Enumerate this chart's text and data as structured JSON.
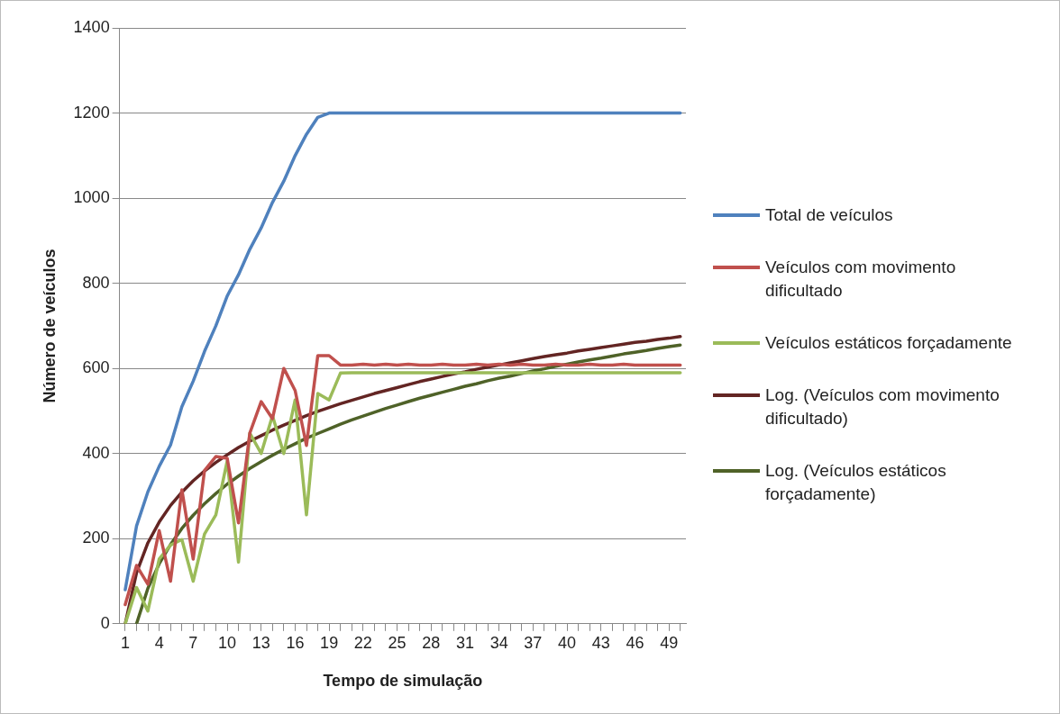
{
  "chart_data": {
    "type": "line",
    "xlabel": "Tempo de simulação",
    "ylabel": "Número de veículos",
    "categories": [
      "1",
      null,
      null,
      "4",
      null,
      null,
      "7",
      null,
      null,
      "10",
      null,
      null,
      "13",
      null,
      null,
      "16",
      null,
      null,
      "19",
      null,
      null,
      "22",
      null,
      null,
      "25",
      null,
      null,
      "28",
      null,
      null,
      "31",
      null,
      null,
      "34",
      null,
      null,
      "37",
      null,
      null,
      "40",
      null,
      null,
      "43",
      null,
      null,
      "46",
      null,
      null,
      "49",
      null
    ],
    "ylim": [
      0,
      1400
    ],
    "yticks": [
      0,
      200,
      400,
      600,
      800,
      1000,
      1200,
      1400
    ],
    "grid": "y",
    "legend": "right",
    "marker": "none",
    "series": [
      {
        "name": "Total de veículos",
        "color": "#4f81bd",
        "values": [
          80,
          230,
          310,
          370,
          420,
          510,
          570,
          640,
          700,
          770,
          820,
          880,
          930,
          990,
          1040,
          1100,
          1150,
          1190,
          1200,
          1200,
          1200,
          1200,
          1200,
          1200,
          1200,
          1200,
          1200,
          1200,
          1200,
          1200,
          1200,
          1200,
          1200,
          1200,
          1200,
          1200,
          1200,
          1200,
          1200,
          1200,
          1200,
          1200,
          1200,
          1200,
          1200,
          1200,
          1200,
          1200,
          1200,
          1200
        ]
      },
      {
        "name": "Veículos com movimento dificultado",
        "color": "#c0504d",
        "values": [
          45,
          137,
          93,
          219,
          100,
          315,
          152,
          360,
          393,
          389,
          237,
          448,
          522,
          482,
          600,
          548,
          419,
          630,
          630,
          608,
          608,
          610,
          608,
          610,
          608,
          610,
          608,
          608,
          610,
          608,
          608,
          610,
          608,
          610,
          608,
          610,
          608,
          608,
          610,
          608,
          608,
          610,
          608,
          608,
          610,
          608,
          608,
          608,
          608,
          608
        ]
      },
      {
        "name": "Veículos estáticos forçadamente",
        "color": "#9bbb59",
        "values": [
          0,
          85,
          30,
          152,
          185,
          198,
          100,
          211,
          256,
          382,
          145,
          448,
          400,
          489,
          400,
          526,
          256,
          541,
          526,
          589,
          590,
          590,
          590,
          590,
          590,
          590,
          590,
          590,
          590,
          590,
          590,
          590,
          590,
          590,
          590,
          590,
          590,
          590,
          590,
          590,
          590,
          590,
          590,
          590,
          590,
          590,
          590,
          590,
          590,
          590
        ]
      },
      {
        "name": "Log. (Veículos com movimento dificultado)",
        "color": "#632523",
        "values": [
          0,
          120,
          190,
          239,
          278,
          309,
          336,
          359,
          379,
          397,
          414,
          429,
          442,
          455,
          467,
          478,
          489,
          499,
          508,
          517,
          525,
          533,
          541,
          548,
          555,
          562,
          569,
          575,
          581,
          587,
          592,
          598,
          603,
          608,
          613,
          618,
          623,
          628,
          632,
          636,
          641,
          645,
          649,
          653,
          657,
          661,
          664,
          668,
          671,
          675
        ]
      },
      {
        "name": "Log. (Veículos estáticos forçadamente)",
        "color": "#4f6228",
        "values": [
          null,
          0,
          83,
          141,
          186,
          224,
          255,
          282,
          306,
          328,
          347,
          365,
          381,
          396,
          410,
          423,
          436,
          447,
          458,
          469,
          479,
          488,
          497,
          506,
          514,
          522,
          530,
          537,
          544,
          551,
          558,
          564,
          571,
          577,
          582,
          588,
          594,
          599,
          605,
          610,
          615,
          620,
          624,
          629,
          634,
          638,
          642,
          647,
          651,
          655
        ]
      }
    ]
  }
}
